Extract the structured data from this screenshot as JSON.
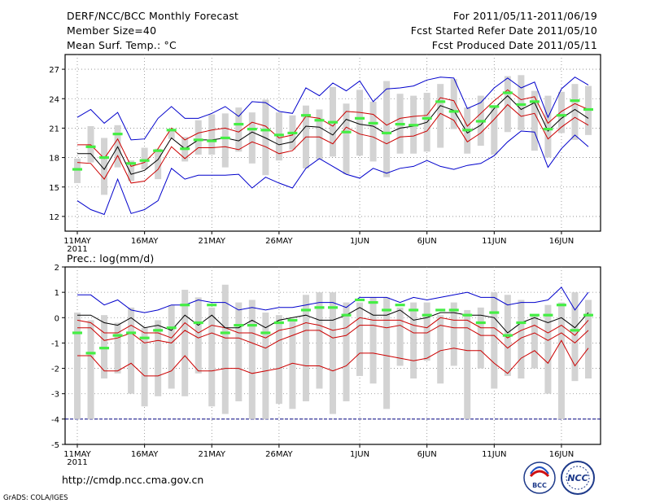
{
  "header": {
    "title": "DERF/NCC/BCC Monthly Forecast",
    "member_size": "Member Size=40",
    "variable": "Mean Surf. Temp.: °C",
    "for_period": "For 2011/05/11-2011/06/19",
    "fcst_started": "Fcst Started Refer Date 2011/05/10",
    "fcst_produced": "Fcst Produced Date 2011/05/11"
  },
  "footer": {
    "url": "http://cmdp.ncc.cma.gov.cn",
    "credit": "GrADS: COLA/IGES",
    "logo_bcc_text": "BCC",
    "logo_ncc_text": "NCC"
  },
  "colors": {
    "box": "#d3d3d3",
    "median": "#44ee44",
    "mean": "#000000",
    "spread": "#cc0000",
    "extreme": "#0000cc",
    "grid": "#888888"
  },
  "chart_data": [
    {
      "type": "line",
      "title": "Mean Surf. Temp.: °C",
      "ylim": [
        10.5,
        28.5
      ],
      "yticks": [
        12,
        15,
        18,
        21,
        24,
        27
      ],
      "xlim": [
        0,
        39
      ],
      "xtick_positions": [
        0,
        5,
        10,
        15,
        21,
        26,
        31,
        36
      ],
      "xtick_labels": [
        "11MAY",
        "16MAY",
        "21MAY",
        "26MAY",
        "1JUN",
        "6JUN",
        "11JUN",
        "16JUN"
      ],
      "xtick_year": "2011",
      "days": 39,
      "box_low": [
        15.4,
        17.5,
        14.2,
        17.0,
        15.6,
        16.8,
        15.8,
        19.9,
        17.6,
        18.3,
        18.3,
        17.0,
        18.6,
        17.4,
        16.2,
        17.7,
        18.8,
        16.9,
        17.8,
        18.1,
        16.3,
        18.2,
        17.6,
        16.0,
        18.4,
        18.4,
        18.6,
        19.0,
        20.9,
        18.4,
        19.2,
        18.3,
        20.6,
        20.8,
        18.7,
        18.0,
        20.5,
        19.8,
        20.3
      ],
      "box_high": [
        17.9,
        21.2,
        20.0,
        21.3,
        17.7,
        19.0,
        18.9,
        20.9,
        20.1,
        21.8,
        22.4,
        22.5,
        23.1,
        22.6,
        23.9,
        22.6,
        22.3,
        23.3,
        22.9,
        25.2,
        23.5,
        24.9,
        23.7,
        25.8,
        24.5,
        24.3,
        24.6,
        25.5,
        26.0,
        23.1,
        24.3,
        23.3,
        26.3,
        26.4,
        24.8,
        24.3,
        24.7,
        25.5,
        25.3
      ],
      "median": [
        16.8,
        19.1,
        18.0,
        20.4,
        17.4,
        17.7,
        18.7,
        20.8,
        18.9,
        19.8,
        19.7,
        20.0,
        21.4,
        20.9,
        20.8,
        20.3,
        20.5,
        22.3,
        21.8,
        21.6,
        20.6,
        22.0,
        21.5,
        20.5,
        21.4,
        21.3,
        22.0,
        23.7,
        22.7,
        20.8,
        21.7,
        23.2,
        24.6,
        23.4,
        23.7,
        20.9,
        22.3,
        23.8,
        22.9
      ],
      "mean": [
        18.4,
        18.4,
        16.8,
        19.1,
        16.3,
        16.7,
        17.8,
        20.0,
        18.9,
        19.8,
        19.8,
        20.0,
        19.7,
        20.6,
        20.0,
        19.3,
        19.6,
        21.2,
        21.1,
        20.3,
        21.9,
        21.4,
        21.2,
        20.4,
        21.0,
        21.2,
        21.6,
        23.3,
        22.8,
        20.5,
        21.3,
        23.0,
        24.3,
        22.9,
        23.6,
        20.7,
        22.0,
        22.9,
        22.0
      ],
      "spread_high": [
        19.3,
        19.3,
        17.9,
        19.9,
        17.1,
        17.5,
        18.9,
        21.0,
        19.8,
        20.5,
        20.8,
        21.0,
        20.6,
        21.6,
        21.2,
        20.0,
        20.3,
        22.2,
        22.0,
        21.2,
        22.7,
        22.6,
        22.4,
        21.3,
        22.0,
        22.2,
        22.3,
        24.1,
        23.8,
        21.2,
        22.5,
        23.8,
        24.9,
        23.9,
        24.2,
        21.5,
        22.7,
        23.5,
        22.9
      ],
      "spread_low": [
        17.5,
        17.4,
        15.8,
        18.2,
        15.4,
        15.6,
        16.8,
        19.1,
        17.9,
        19.0,
        19.0,
        19.1,
        18.8,
        19.6,
        19.1,
        18.4,
        18.7,
        20.1,
        20.1,
        19.4,
        21.1,
        20.4,
        20.1,
        19.4,
        20.1,
        20.2,
        20.7,
        22.5,
        21.8,
        19.6,
        20.5,
        21.9,
        23.4,
        22.2,
        22.5,
        19.9,
        21.1,
        22.1,
        21.3
      ],
      "max": [
        22.1,
        22.9,
        21.5,
        22.6,
        19.8,
        19.9,
        22.0,
        23.2,
        22.0,
        22.0,
        22.5,
        23.2,
        22.2,
        23.7,
        23.6,
        22.7,
        22.5,
        25.1,
        24.3,
        25.6,
        24.8,
        25.8,
        23.7,
        25.0,
        25.1,
        25.3,
        25.9,
        26.2,
        26.1,
        23.0,
        23.6,
        25.1,
        26.1,
        25.1,
        25.7,
        22.1,
        25.0,
        26.2,
        25.4
      ],
      "min": [
        13.6,
        12.7,
        12.2,
        15.8,
        12.3,
        12.7,
        13.6,
        16.9,
        15.8,
        16.2,
        16.2,
        16.2,
        16.3,
        14.9,
        16.0,
        15.4,
        14.9,
        16.9,
        17.9,
        17.1,
        16.3,
        15.9,
        16.9,
        16.4,
        16.9,
        17.1,
        17.7,
        17.1,
        16.8,
        17.2,
        17.4,
        18.2,
        19.6,
        20.7,
        20.6,
        17.0,
        18.9,
        20.3,
        19.1
      ]
    },
    {
      "type": "line",
      "title": "Prec.: log(mm/d)",
      "ylim": [
        -5,
        2
      ],
      "yticks": [
        -5,
        -4,
        -3,
        -2,
        -1,
        0,
        1,
        2
      ],
      "xlim": [
        0,
        39
      ],
      "xtick_positions": [
        0,
        5,
        10,
        15,
        21,
        26,
        31,
        36
      ],
      "xtick_labels": [
        "11MAY",
        "16MAY",
        "21MAY",
        "26MAY",
        "1JUN",
        "6JUN",
        "11JUN",
        "16JUN"
      ],
      "xtick_year": "2011",
      "days": 39,
      "reference_line": -4,
      "box_low": [
        -4.0,
        -4.0,
        -2.4,
        -2.2,
        -3.0,
        -3.5,
        -3.1,
        -2.8,
        -3.1,
        -2.2,
        -3.5,
        -3.8,
        -3.3,
        -4.0,
        -4.0,
        -3.4,
        -3.6,
        -3.3,
        -2.8,
        -3.8,
        -3.3,
        -2.3,
        -2.6,
        -3.6,
        -1.9,
        -2.4,
        -1.7,
        -2.6,
        -1.9,
        -4.0,
        -2.0,
        -2.8,
        -2.3,
        -2.4,
        -2.0,
        -3.0,
        -4.0,
        -2.5,
        -2.4
      ],
      "box_high": [
        0.2,
        -0.1,
        0.1,
        -0.2,
        0.4,
        -0.4,
        -0.1,
        0.5,
        1.1,
        0.8,
        0.4,
        1.3,
        0.6,
        0.7,
        0.2,
        0.1,
        -0.1,
        0.9,
        1.0,
        1.0,
        0.6,
        0.6,
        0.8,
        0.8,
        0.4,
        0.6,
        0.6,
        0.1,
        0.6,
        0.3,
        0.4,
        1.0,
        0.9,
        0.7,
        0.1,
        0.5,
        0.6,
        1.0,
        0.7
      ],
      "median": [
        -0.6,
        -1.4,
        -1.2,
        -0.7,
        -0.6,
        -0.8,
        -0.5,
        -0.4,
        0.5,
        -0.2,
        0.5,
        -0.6,
        -0.3,
        -0.3,
        -0.6,
        -0.2,
        -0.1,
        0.3,
        0.4,
        0.4,
        0.1,
        0.7,
        0.6,
        0.3,
        0.5,
        0.3,
        0.1,
        0.3,
        0.3,
        0.1,
        -0.2,
        0.2,
        -0.7,
        -0.2,
        0.1,
        0.1,
        0.5,
        -0.5,
        0.1
      ],
      "mean": [
        0.1,
        0.1,
        -0.2,
        -0.3,
        0.0,
        -0.4,
        -0.3,
        -0.5,
        0.1,
        -0.3,
        0.1,
        -0.4,
        -0.4,
        -0.1,
        -0.4,
        -0.1,
        0.0,
        0.1,
        -0.1,
        -0.1,
        0.1,
        0.4,
        0.1,
        0.1,
        0.3,
        -0.1,
        0.0,
        0.2,
        0.2,
        0.1,
        0.1,
        0.0,
        -0.6,
        -0.2,
        0.0,
        -0.2,
        0.0,
        -0.4,
        0.2
      ],
      "spread_high": [
        -0.1,
        -0.2,
        -0.6,
        -0.6,
        -0.3,
        -0.6,
        -0.6,
        -0.8,
        -0.2,
        -0.6,
        -0.3,
        -0.4,
        -0.6,
        -0.6,
        -0.8,
        -0.5,
        -0.4,
        -0.2,
        -0.3,
        -0.5,
        -0.4,
        0.0,
        -0.1,
        -0.1,
        -0.1,
        -0.3,
        -0.4,
        0.0,
        -0.1,
        -0.1,
        -0.4,
        -0.4,
        -0.8,
        -0.5,
        -0.3,
        -0.6,
        -0.3,
        -0.7,
        -0.1
      ],
      "spread_low": [
        -0.4,
        -0.4,
        -0.9,
        -0.8,
        -0.6,
        -1.0,
        -0.9,
        -1.0,
        -0.5,
        -0.8,
        -0.6,
        -0.8,
        -0.8,
        -1.0,
        -1.2,
        -0.9,
        -0.7,
        -0.5,
        -0.5,
        -0.8,
        -0.7,
        -0.3,
        -0.3,
        -0.4,
        -0.3,
        -0.6,
        -0.6,
        -0.3,
        -0.4,
        -0.4,
        -0.7,
        -0.7,
        -1.2,
        -0.8,
        -0.6,
        -0.9,
        -0.6,
        -1.0,
        -0.5
      ],
      "lower_red": [
        -1.5,
        -1.5,
        -2.1,
        -2.1,
        -1.8,
        -2.3,
        -2.3,
        -2.1,
        -1.5,
        -2.1,
        -2.1,
        -2.0,
        -2.0,
        -2.2,
        -2.1,
        -2.0,
        -1.8,
        -1.9,
        -1.9,
        -2.1,
        -1.9,
        -1.4,
        -1.4,
        -1.5,
        -1.6,
        -1.7,
        -1.6,
        -1.3,
        -1.2,
        -1.3,
        -1.3,
        -1.8,
        -2.2,
        -1.6,
        -1.3,
        -1.8,
        -0.9,
        -1.9,
        -1.2
      ],
      "max": [
        0.9,
        0.9,
        0.5,
        0.7,
        0.3,
        0.2,
        0.3,
        0.5,
        0.5,
        0.7,
        0.6,
        0.6,
        0.3,
        0.4,
        0.3,
        0.4,
        0.4,
        0.5,
        0.6,
        0.6,
        0.4,
        0.8,
        0.8,
        0.8,
        0.6,
        0.8,
        0.7,
        0.8,
        0.9,
        1.0,
        0.8,
        0.8,
        0.5,
        0.6,
        0.6,
        0.7,
        1.2,
        0.3,
        1.0
      ],
      "min": [
        null,
        null,
        null,
        null,
        null,
        null,
        null,
        null,
        null,
        null,
        null,
        null,
        null,
        null,
        null,
        null,
        null,
        null,
        null,
        null,
        null,
        null,
        null,
        null,
        null,
        null,
        null,
        null,
        null,
        null,
        null,
        null,
        null,
        null,
        null,
        null,
        null,
        null,
        null
      ]
    }
  ]
}
